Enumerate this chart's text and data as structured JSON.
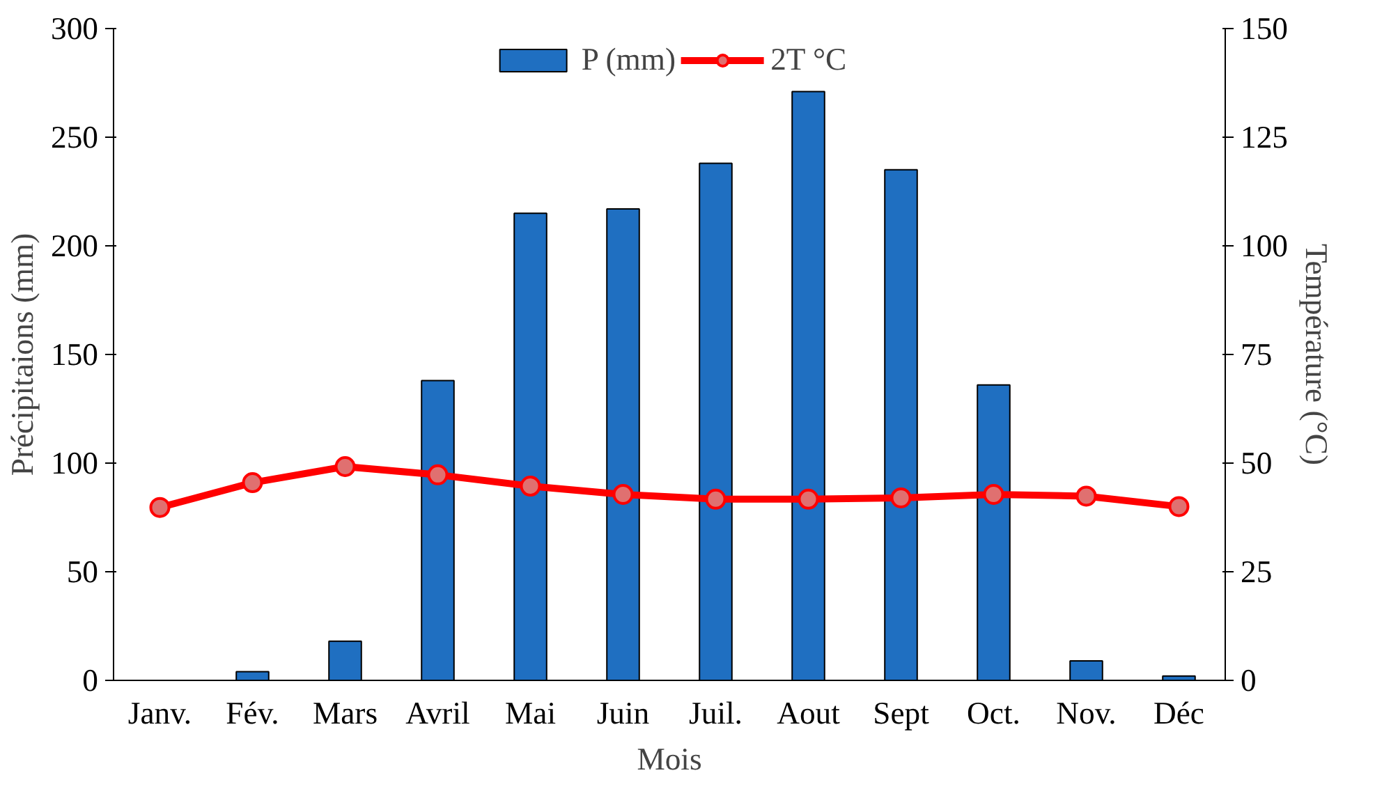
{
  "chart_data": {
    "type": "bar",
    "xlabel": "Mois",
    "ylabel": "Précipitaions (mm)",
    "y2label": "Température (°C)",
    "categories": [
      "Janv.",
      "Fév.",
      "Mars",
      "Avril",
      "Mai",
      "Juin",
      "Juil.",
      "Aout",
      "Sept",
      "Oct.",
      "Nov.",
      "Déc"
    ],
    "series": [
      {
        "name": "P (mm)",
        "color": "#1f6fc1",
        "values": [
          null,
          4,
          18,
          138,
          215,
          217,
          238,
          271,
          235,
          136,
          9,
          2
        ]
      },
      {
        "name": "2T °C",
        "type": "line",
        "axis": "y2",
        "color": "#ff0000",
        "marker": "circle",
        "values": [
          39.8,
          45.5,
          49.2,
          47.3,
          44.7,
          42.8,
          41.7,
          41.7,
          42,
          42.8,
          42.4,
          40
        ]
      }
    ],
    "ylim": [
      0,
      300
    ],
    "yticks": [
      0,
      50,
      100,
      150,
      200,
      250,
      300
    ],
    "y2lim": [
      0,
      150
    ],
    "y2ticks": [
      0,
      25,
      50,
      75,
      100,
      125,
      150
    ],
    "grid": false,
    "legend": "top"
  }
}
